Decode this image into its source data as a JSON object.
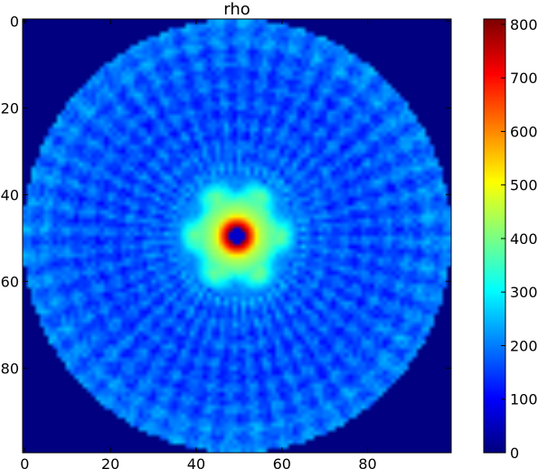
{
  "chart_data": {
    "type": "heatmap",
    "title": "rho",
    "grid_size": 100,
    "xlim": [
      -0.5,
      99.5
    ],
    "ylim": [
      99.5,
      -0.5
    ],
    "y_axis_inverted": true,
    "x_ticks": [
      0,
      20,
      40,
      60,
      80
    ],
    "y_ticks": [
      0,
      20,
      40,
      60,
      80
    ],
    "colormap": "jet",
    "colorbar": {
      "range": [
        0,
        810
      ],
      "ticks": [
        0,
        100,
        200,
        300,
        400,
        500,
        600,
        700,
        800
      ],
      "position": "right"
    },
    "field": {
      "description_of_values": [
        {
          "region": "outside disk (r > 50)",
          "value": 0
        },
        {
          "region": "center (r < 1)",
          "value": 80
        },
        {
          "region": "ring r = 2",
          "value": 800
        },
        {
          "region": "r = 5",
          "value": 460
        },
        {
          "region": "r = 8",
          "value": 380
        },
        {
          "region": "r = 11",
          "value": 300
        },
        {
          "region": "r = 14",
          "value": 200
        },
        {
          "region": "r = 20",
          "value": 170
        },
        {
          "region": "r = 30",
          "value": 160
        },
        {
          "region": "r = 40",
          "value": 170
        },
        {
          "region": "r = 48",
          "value": 200
        }
      ],
      "disk_center": [
        49.5,
        49.5
      ],
      "disk_radius": 50
    },
    "colors": {
      "background": "#ffffff",
      "outside": "#00007f"
    }
  }
}
